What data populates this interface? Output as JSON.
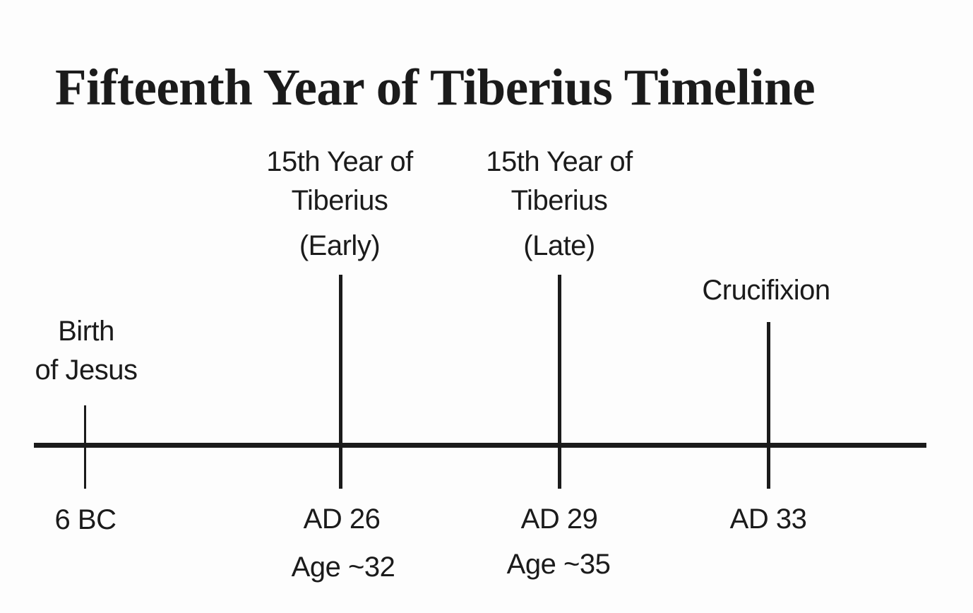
{
  "title": "Fifteenth Year of Tiberius Timeline",
  "colors": {
    "ink": "#1b1b1b",
    "background": "#fdfdfd"
  },
  "events": {
    "birth": {
      "name_line1": "Birth",
      "name_line2": "of Jesus",
      "year": "6 BC"
    },
    "tiberius_early": {
      "name_line1": "15th Year of",
      "name_line2": "Tiberius",
      "qualifier": "(Early)",
      "year": "AD 26",
      "age": "Age ~32"
    },
    "tiberius_late": {
      "name_line1": "15th Year of",
      "name_line2": "Tiberius",
      "qualifier": "(Late)",
      "year": "AD 29",
      "age": "Age ~35"
    },
    "crucifixion": {
      "name": "Crucifixion",
      "year": "AD 33"
    }
  },
  "timeline_summary": {
    "type": "timeline",
    "points": [
      {
        "year": "6 BC",
        "label": "Birth of Jesus"
      },
      {
        "year": "AD 26",
        "label": "15th Year of Tiberius (Early)",
        "age": "Age ~32"
      },
      {
        "year": "AD 29",
        "label": "15th Year of Tiberius (Late)",
        "age": "Age ~35"
      },
      {
        "year": "AD 33",
        "label": "Crucifixion"
      }
    ]
  }
}
